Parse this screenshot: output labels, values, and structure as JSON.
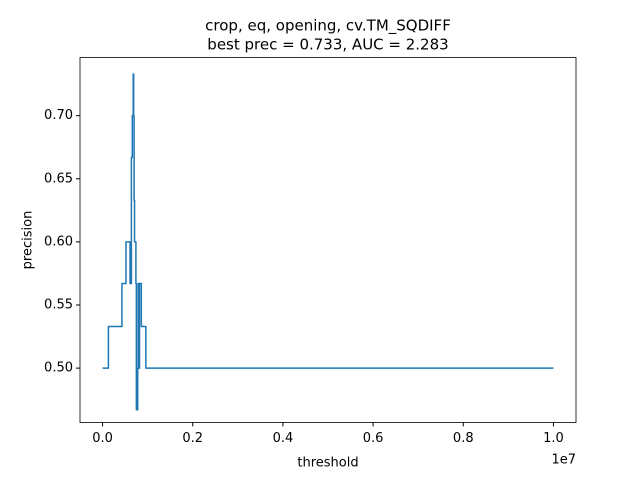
{
  "chart_data": {
    "type": "line",
    "title": "crop, eq, opening, cv.TM_SQDIFF",
    "subtitle": "best prec = 0.733, AUC = 2.283",
    "x_label": "threshold",
    "y_label": "precision",
    "x_offset_label": "1e7",
    "series": [
      {
        "name": "precision",
        "color": "#1f77b4",
        "x": [
          0,
          0.013,
          0.013,
          0.043,
          0.043,
          0.052,
          0.052,
          0.061,
          0.061,
          0.064,
          0.064,
          0.066,
          0.066,
          0.068,
          0.068,
          0.069,
          0.069,
          0.07,
          0.07,
          0.071,
          0.071,
          0.074,
          0.074,
          0.075,
          0.075,
          0.078,
          0.078,
          0.079,
          0.079,
          0.081,
          0.081,
          0.082,
          0.082,
          0.086,
          0.086,
          0.096,
          0.096,
          1.0
        ],
        "values": [
          0.5,
          0.5,
          0.533,
          0.533,
          0.567,
          0.567,
          0.6,
          0.6,
          0.567,
          0.567,
          0.667,
          0.667,
          0.7,
          0.7,
          0.733,
          0.733,
          0.7,
          0.7,
          0.633,
          0.633,
          0.6,
          0.6,
          0.567,
          0.567,
          0.467,
          0.467,
          0.5,
          0.5,
          0.567,
          0.567,
          0.5,
          0.5,
          0.567,
          0.567,
          0.533,
          0.533,
          0.5,
          0.5
        ]
      }
    ],
    "xlim": [
      -0.05,
      1.05
    ],
    "ylim": [
      0.457,
      0.746
    ],
    "xticks": [
      {
        "value": 0,
        "label": "0.0"
      },
      0.2,
      0.4,
      0.6,
      0.8,
      {
        "value": 1,
        "label": "1.0"
      }
    ],
    "yticks": [
      {
        "value": 0.5,
        "label": "0.50"
      },
      0.55,
      {
        "value": 0.6,
        "label": "0.60"
      },
      0.65,
      {
        "value": 0.7,
        "label": "0.70"
      }
    ],
    "grid": false
  }
}
